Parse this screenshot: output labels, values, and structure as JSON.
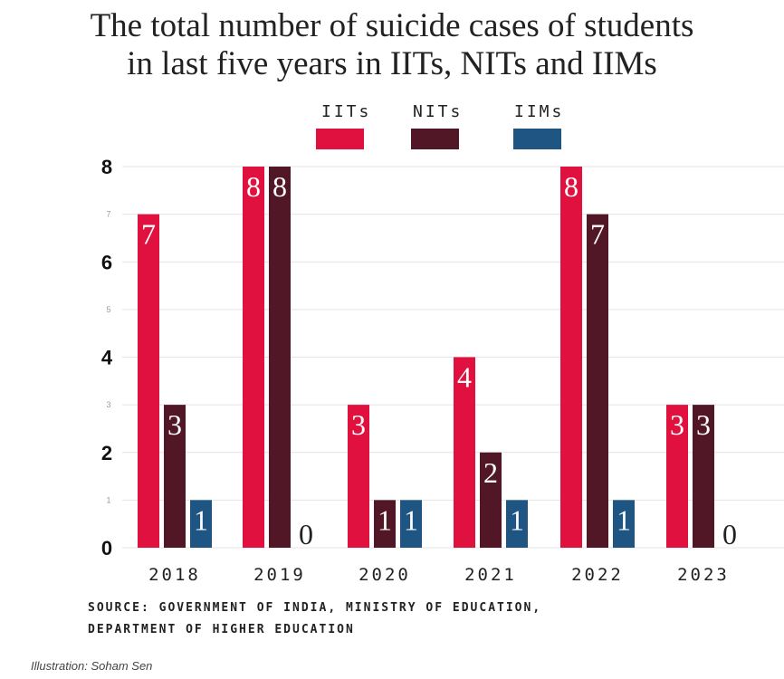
{
  "chart_data": {
    "type": "bar",
    "title": "The total number of suicide cases of students in last five years in IITs, NITs and IIMs",
    "title_lines": [
      "The total number of suicide cases of students",
      "in last five years in IITs, NITs and IIMs"
    ],
    "categories": [
      "2018",
      "2019",
      "2020",
      "2021",
      "2022",
      "2023"
    ],
    "series": [
      {
        "name": "IITs",
        "color": "#e0103f",
        "values": [
          7,
          8,
          3,
          4,
          8,
          3
        ]
      },
      {
        "name": "NITs",
        "color": "#521726",
        "values": [
          3,
          8,
          1,
          2,
          7,
          3
        ]
      },
      {
        "name": "IIMs",
        "color": "#1f5582",
        "values": [
          1,
          0,
          1,
          1,
          1,
          0
        ]
      }
    ],
    "ylim": [
      0,
      8
    ],
    "yticks_major": [
      0,
      2,
      4,
      6,
      8
    ],
    "yticks_minor": [
      1,
      3,
      5,
      7
    ],
    "grid": true,
    "legend": "top-center",
    "xlabel": "",
    "ylabel": ""
  },
  "source_lines": [
    "SOURCE: GOVERNMENT OF INDIA, MINISTRY OF EDUCATION,",
    "DEPARTMENT OF HIGHER EDUCATION"
  ],
  "credit": "Illustration: Soham Sen"
}
